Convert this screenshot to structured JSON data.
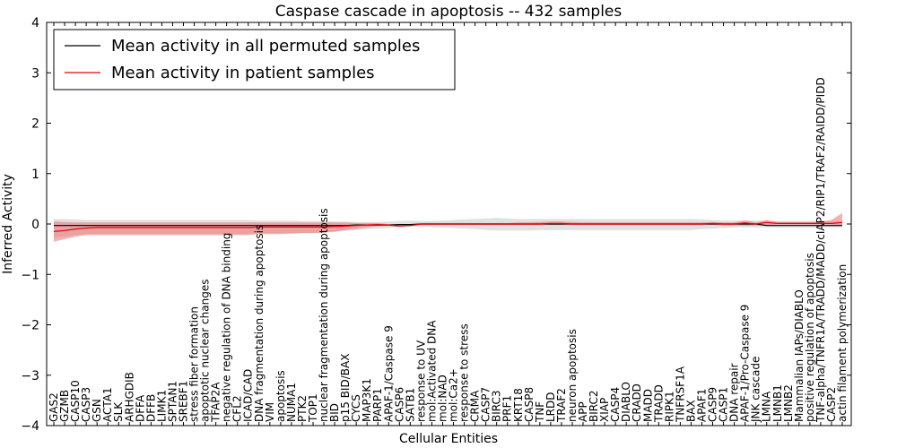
{
  "chart_data": {
    "type": "line",
    "title": "Caspase cascade in apoptosis -- 432 samples",
    "xlabel": "Cellular Entities",
    "ylabel": "Inferred Activity",
    "ylim": [
      -4,
      4
    ],
    "yticks": [
      -4,
      -3,
      -2,
      -1,
      0,
      1,
      2,
      3,
      4
    ],
    "ytick_labels": [
      "−4",
      "−3",
      "−2",
      "−1",
      "0",
      "1",
      "2",
      "3",
      "4"
    ],
    "grid": false,
    "legend_position": "top-left",
    "colors": {
      "permuted_line": "#000000",
      "permuted_band": "#c8c8c8",
      "patient_line": "#e8000b",
      "patient_band": "#f07070"
    },
    "categories": [
      "GAS2",
      "GZMB",
      "CASP10",
      "CASP3",
      "GSN",
      "ACTA1",
      "SLK",
      "ARHGDIB",
      "DFFA",
      "DFFB",
      "LIMK1",
      "SPTAN1",
      "SREBF1",
      "stress fiber formation",
      "apoptotic nuclear changes",
      "TFAP2A",
      "negative regulation of DNA binding",
      "CFL2",
      "ICAD/CAD",
      "DNA fragmentation during apoptosis",
      "VIM",
      "apoptosis",
      "NUMA1",
      "PTK2",
      "TOP1",
      "nuclear fragmentation during apoptosis",
      "BID",
      "p15 BID/BAX",
      "CYCS",
      "MAP3K1",
      "PARP1",
      "APAF-1/Caspase 9",
      "CASP6",
      "SATB1",
      "response to UV",
      "mol:Activated DNA",
      "mol:NAD",
      "mol:Ca2+",
      "response to stress",
      "CRMA",
      "CASP7",
      "BIRC3",
      "PRF1",
      "KRT18",
      "CASP8",
      "TNF",
      "LRDD",
      "TRAF2",
      "neuron apoptosis",
      "APP",
      "BIRC2",
      "XIAP",
      "CASP4",
      "DIABLO",
      "CRADD",
      "MADD",
      "TRADD",
      "RIPK1",
      "TNFRSF1A",
      "BAX",
      "APAF1",
      "CASP9",
      "CASP1",
      "DNA repair",
      "APAF-1/Pro-Caspase 9",
      "JNK cascade",
      "LMNA",
      "LMNB1",
      "LMNB2",
      "Mammalian IAPs/DIABLO",
      "positive regulation of apoptosis",
      "TNF-alpha/TNFR1A/TRADD/MADD/cIAP2/RIP1/TRAF2/RAIDD/PIDD",
      "CASP2",
      "actin filament polymerization"
    ],
    "series": [
      {
        "name": "Mean activity in all permuted samples",
        "values": [
          -0.03,
          -0.03,
          -0.03,
          -0.03,
          -0.03,
          -0.03,
          -0.03,
          -0.03,
          -0.03,
          -0.03,
          -0.03,
          -0.03,
          -0.03,
          -0.03,
          -0.03,
          -0.03,
          -0.03,
          -0.03,
          -0.03,
          -0.03,
          -0.03,
          -0.03,
          -0.03,
          -0.03,
          -0.03,
          -0.03,
          -0.03,
          -0.03,
          -0.02,
          -0.02,
          -0.02,
          -0.02,
          -0.01,
          -0.01,
          0.0,
          0.0,
          0.0,
          0.0,
          0.0,
          0.0,
          0.0,
          0.0,
          0.0,
          0.0,
          0.0,
          0.0,
          0.0,
          0.0,
          0.0,
          0.0,
          0.0,
          0.0,
          0.0,
          0.0,
          0.0,
          0.0,
          0.0,
          0.0,
          0.0,
          0.0,
          0.0,
          0.0,
          0.0,
          0.0,
          0.0,
          0.0,
          -0.03,
          -0.03,
          -0.03,
          -0.03,
          -0.03,
          -0.03,
          -0.03,
          -0.03
        ],
        "lower": [
          -0.27,
          -0.25,
          -0.22,
          -0.2,
          -0.2,
          -0.2,
          -0.2,
          -0.2,
          -0.2,
          -0.2,
          -0.2,
          -0.2,
          -0.2,
          -0.2,
          -0.2,
          -0.2,
          -0.2,
          -0.2,
          -0.2,
          -0.18,
          -0.18,
          -0.18,
          -0.18,
          -0.18,
          -0.18,
          -0.17,
          -0.16,
          -0.14,
          -0.12,
          -0.1,
          -0.09,
          -0.08,
          -0.06,
          -0.05,
          -0.06,
          -0.06,
          -0.07,
          -0.08,
          -0.09,
          -0.1,
          -0.12,
          -0.13,
          -0.13,
          -0.13,
          -0.13,
          -0.12,
          -0.12,
          -0.12,
          -0.12,
          -0.12,
          -0.12,
          -0.12,
          -0.12,
          -0.12,
          -0.12,
          -0.12,
          -0.12,
          -0.12,
          -0.12,
          -0.12,
          -0.1,
          -0.09,
          -0.08,
          -0.07,
          -0.07,
          -0.07,
          -0.07,
          -0.07,
          -0.07,
          -0.07,
          -0.07,
          -0.07,
          -0.07,
          -0.07
        ],
        "upper": [
          0.1,
          0.1,
          0.09,
          0.08,
          0.08,
          0.08,
          0.08,
          0.08,
          0.08,
          0.08,
          0.08,
          0.08,
          0.08,
          0.08,
          0.08,
          0.08,
          0.08,
          0.08,
          0.08,
          0.07,
          0.07,
          0.07,
          0.07,
          0.06,
          0.06,
          0.06,
          0.05,
          0.05,
          0.04,
          0.04,
          0.04,
          0.05,
          0.06,
          0.07,
          0.06,
          0.06,
          0.07,
          0.08,
          0.09,
          0.1,
          0.11,
          0.12,
          0.11,
          0.1,
          0.1,
          0.1,
          0.1,
          0.1,
          0.1,
          0.1,
          0.1,
          0.1,
          0.1,
          0.1,
          0.1,
          0.1,
          0.1,
          0.1,
          0.1,
          0.1,
          0.09,
          0.08,
          0.07,
          0.07,
          0.07,
          0.07,
          0.06,
          0.06,
          0.06,
          0.06,
          0.06,
          0.06,
          0.06,
          0.06
        ]
      },
      {
        "name": "Mean activity in patient samples",
        "values": [
          -0.15,
          -0.13,
          -0.1,
          -0.08,
          -0.07,
          -0.07,
          -0.07,
          -0.07,
          -0.07,
          -0.07,
          -0.07,
          -0.07,
          -0.07,
          -0.07,
          -0.07,
          -0.07,
          -0.07,
          -0.07,
          -0.07,
          -0.06,
          -0.06,
          -0.06,
          -0.06,
          -0.06,
          -0.06,
          -0.06,
          -0.05,
          -0.04,
          -0.03,
          -0.02,
          -0.01,
          -0.02,
          -0.04,
          -0.03,
          0.0,
          0.0,
          0.0,
          0.0,
          0.0,
          0.0,
          0.0,
          0.0,
          0.0,
          0.0,
          0.0,
          0.0,
          0.01,
          0.01,
          0.0,
          0.0,
          0.0,
          0.0,
          0.0,
          0.0,
          0.0,
          0.0,
          0.0,
          0.0,
          0.0,
          0.0,
          0.0,
          0.01,
          0.0,
          0.0,
          0.02,
          0.0,
          0.03,
          0.01,
          0.01,
          0.01,
          0.01,
          0.01,
          0.01,
          0.03
        ],
        "lower": [
          -0.35,
          -0.3,
          -0.25,
          -0.22,
          -0.22,
          -0.22,
          -0.22,
          -0.22,
          -0.22,
          -0.22,
          -0.22,
          -0.22,
          -0.22,
          -0.22,
          -0.22,
          -0.22,
          -0.22,
          -0.22,
          -0.22,
          -0.2,
          -0.2,
          -0.2,
          -0.19,
          -0.18,
          -0.18,
          -0.17,
          -0.15,
          -0.12,
          -0.1,
          -0.07,
          -0.04,
          -0.04,
          -0.05,
          -0.04,
          -0.02,
          -0.02,
          -0.02,
          -0.02,
          -0.02,
          -0.02,
          -0.02,
          -0.02,
          -0.02,
          -0.02,
          -0.02,
          -0.02,
          -0.02,
          -0.02,
          -0.02,
          -0.02,
          -0.02,
          -0.02,
          -0.02,
          -0.02,
          -0.02,
          -0.02,
          -0.02,
          -0.02,
          -0.02,
          -0.02,
          -0.02,
          -0.02,
          -0.03,
          -0.03,
          -0.03,
          -0.03,
          -0.02,
          -0.01,
          -0.01,
          -0.01,
          -0.01,
          -0.01,
          -0.01,
          -0.02
        ],
        "upper": [
          0.05,
          0.04,
          0.03,
          0.03,
          0.03,
          0.03,
          0.03,
          0.03,
          0.03,
          0.03,
          0.03,
          0.03,
          0.03,
          0.03,
          0.03,
          0.03,
          0.03,
          0.03,
          0.03,
          0.03,
          0.03,
          0.03,
          0.03,
          0.03,
          0.03,
          0.03,
          0.03,
          0.03,
          0.02,
          0.02,
          0.02,
          0.0,
          -0.02,
          -0.01,
          0.02,
          0.02,
          0.02,
          0.02,
          0.02,
          0.02,
          0.02,
          0.02,
          0.02,
          0.03,
          0.03,
          0.04,
          0.05,
          0.05,
          0.04,
          0.03,
          0.03,
          0.03,
          0.03,
          0.03,
          0.03,
          0.03,
          0.03,
          0.03,
          0.03,
          0.03,
          0.03,
          0.04,
          0.03,
          0.03,
          0.07,
          0.03,
          0.08,
          0.04,
          0.04,
          0.04,
          0.04,
          0.05,
          0.08,
          0.22
        ]
      }
    ]
  }
}
